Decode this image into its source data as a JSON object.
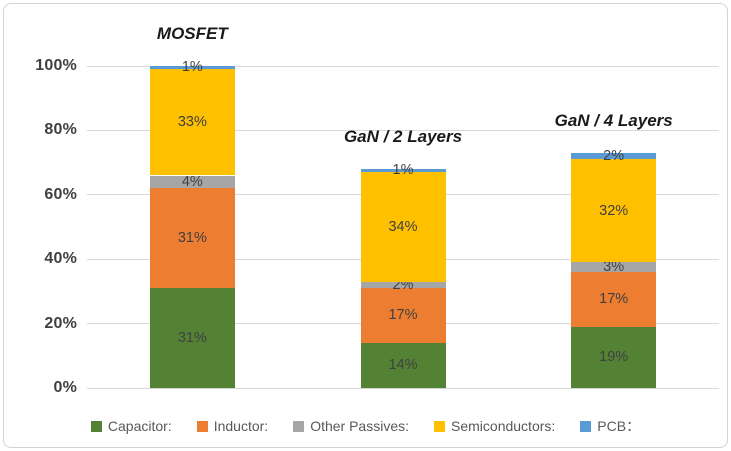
{
  "chart_data": {
    "type": "bar",
    "stacked": true,
    "title": "",
    "xlabel": "",
    "ylabel": "",
    "categories": [
      "MOSFET",
      "GaN / 2 Layers",
      "GaN / 4 Layers"
    ],
    "series": [
      {
        "name": "Capacitor:",
        "color": "#548235",
        "values": [
          31,
          14,
          19
        ]
      },
      {
        "name": "Inductor:",
        "color": "#ED7D31",
        "values": [
          31,
          17,
          17
        ]
      },
      {
        "name": "Other Passives:",
        "color": "#A6A6A6",
        "values": [
          4,
          2,
          3
        ]
      },
      {
        "name": "Semiconductors:",
        "color": "#FFC000",
        "values": [
          33,
          34,
          32
        ]
      },
      {
        "name": "PCB：",
        "color": "#5B9BD5",
        "values": [
          1,
          1,
          2
        ]
      }
    ],
    "segment_labels": [
      [
        "31%",
        "31%",
        "4%",
        "33%",
        "1%"
      ],
      [
        "14%",
        "17%",
        "2%",
        "34%",
        "1%"
      ],
      [
        "19%",
        "17%",
        "3%",
        "32%",
        "2%"
      ]
    ],
    "totals": [
      100,
      68,
      73
    ],
    "y_ticks": [
      "0%",
      "20%",
      "40%",
      "60%",
      "80%",
      "100%"
    ],
    "ylim": [
      0,
      100
    ],
    "grid": true,
    "legend_position": "bottom",
    "colors": {
      "gridline": "#D9D9D9",
      "tick_text": "#404040",
      "data_label": "#404040",
      "legend_text": "#595959",
      "category_title": "#1A1A1A",
      "frame_border": "#D2D2D2",
      "background": "#FFFFFF"
    }
  }
}
